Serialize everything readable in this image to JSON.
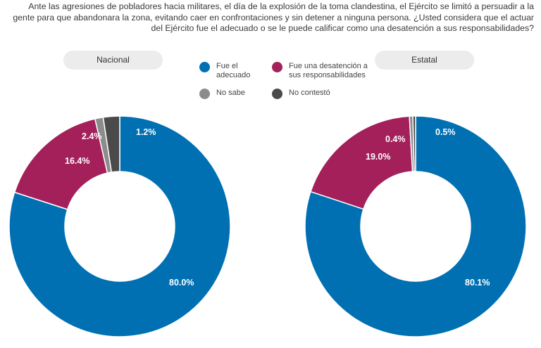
{
  "question": "Ante las agresiones de pobladores hacia militares, el día de la explosión de la toma clandestina, el Ejército se limitó a persuadir a la gente para que abandonara la zona, evitando caer en confrontaciones y sin detener a ninguna persona. ¿Usted considera que el actuar del Ejército fue el adecuado o se le puede calificar como una desatención a sus responsabilidades?",
  "legend": {
    "adecuado": "Fue el adecuado",
    "desatencion": "Fue una desatención a sus responsabilidades",
    "no_sabe": "No sabe",
    "no_contesto": "No contestó"
  },
  "colors": {
    "adecuado": "#0070b3",
    "desatencion": "#a3205a",
    "no_sabe": "#8c8c8c",
    "no_contesto": "#4a4a4a"
  },
  "chart_data": [
    {
      "type": "pie",
      "title": "Nacional",
      "categories": [
        "Fue el adecuado",
        "Fue una desatención a sus responsabilidades",
        "No sabe",
        "No contestó"
      ],
      "values": [
        80.0,
        16.4,
        1.2,
        2.4
      ],
      "labels": [
        "80.0%",
        "16.4%",
        "1.2%",
        "2.4%"
      ]
    },
    {
      "type": "pie",
      "title": "Estatal",
      "categories": [
        "Fue el adecuado",
        "Fue una desatención a sus responsabilidades",
        "No sabe",
        "No contestó"
      ],
      "values": [
        80.1,
        19.0,
        0.5,
        0.4
      ],
      "labels": [
        "80.1%",
        "19.0%",
        "0.5%",
        "0.4%"
      ]
    }
  ]
}
